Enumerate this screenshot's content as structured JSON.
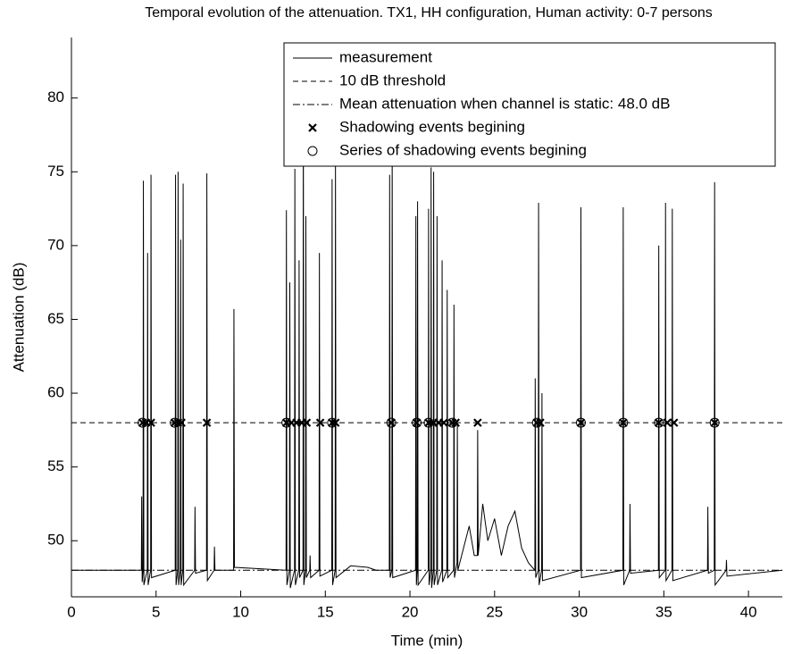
{
  "chart_data": {
    "type": "line",
    "title": "Temporal evolution of the attenuation. TX1, HH configuration, Human activity: 0-7 persons",
    "x_label": "Time (min)",
    "y_label": "Attenuation (dB)",
    "xlim": [
      0,
      42
    ],
    "ylim": [
      46.2,
      84.1
    ],
    "xticks": [
      0,
      5,
      10,
      15,
      20,
      25,
      30,
      35,
      40
    ],
    "yticks": [
      50,
      55,
      60,
      65,
      70,
      75,
      80
    ],
    "legend": "upper right",
    "series": [
      {
        "name": "measurement",
        "color": "#000000",
        "style": "solid",
        "x": [
          0,
          4.13,
          4.15,
          4.18,
          4.23,
          4.25,
          4.28,
          4.48,
          4.5,
          4.53,
          4.68,
          4.7,
          4.73,
          6.13,
          6.15,
          6.18,
          6.28,
          6.3,
          6.33,
          6.43,
          6.45,
          6.48,
          6.58,
          6.6,
          6.63,
          7.28,
          7.3,
          7.33,
          7.98,
          8.0,
          8.03,
          8.43,
          8.45,
          8.48,
          9.58,
          9.6,
          9.63,
          12.68,
          12.7,
          12.73,
          12.88,
          12.9,
          12.93,
          13.18,
          13.2,
          13.23,
          13.43,
          13.45,
          13.48,
          13.68,
          13.7,
          13.73,
          13.83,
          13.85,
          13.88,
          14.08,
          14.1,
          14.13,
          14.63,
          14.65,
          14.68,
          15.38,
          15.4,
          15.43,
          15.58,
          15.6,
          15.63,
          16.5,
          17.5,
          18.0,
          18.78,
          18.8,
          18.83,
          18.93,
          18.95,
          18.98,
          20.33,
          20.35,
          20.38,
          20.43,
          20.45,
          20.48,
          21.08,
          21.1,
          21.13,
          21.23,
          21.25,
          21.28,
          21.38,
          21.4,
          21.43,
          21.58,
          21.6,
          21.63,
          21.88,
          21.9,
          21.93,
          22.18,
          22.2,
          22.23,
          22.58,
          22.6,
          22.63,
          22.78,
          22.8,
          22.83,
          23.5,
          23.8,
          23.98,
          24.0,
          24.03,
          24.3,
          24.6,
          25.0,
          25.4,
          25.8,
          26.2,
          26.6,
          27.0,
          27.38,
          27.4,
          27.43,
          27.58,
          27.6,
          27.63,
          27.78,
          27.8,
          27.83,
          30.08,
          30.1,
          30.13,
          32.58,
          32.6,
          32.63,
          32.98,
          33.0,
          33.03,
          34.68,
          34.7,
          34.73,
          35.08,
          35.1,
          35.13,
          35.48,
          35.5,
          35.53,
          37.58,
          37.6,
          37.63,
          37.98,
          38.0,
          38.03,
          38.68,
          38.7,
          38.73,
          42
        ],
        "values": [
          48,
          48,
          53,
          47.2,
          48,
          74.4,
          47,
          48,
          69.5,
          47,
          48,
          74.8,
          47.5,
          48,
          74.8,
          47,
          48,
          75,
          47,
          48,
          70.4,
          47,
          48,
          74.2,
          47,
          48,
          52.3,
          47.8,
          48,
          74.9,
          47.3,
          48,
          49.6,
          48,
          48,
          65.7,
          48.2,
          48,
          72.4,
          47,
          48,
          67.5,
          46.8,
          48,
          75.2,
          47,
          48,
          69,
          47.5,
          48,
          80.5,
          47,
          48,
          72,
          47.5,
          48,
          49,
          47.5,
          48,
          69.5,
          47.6,
          48,
          74.5,
          47,
          48,
          76,
          47.5,
          48.3,
          48.2,
          48,
          48,
          74.8,
          47.5,
          48,
          77.7,
          47.5,
          48,
          72,
          47,
          48,
          73,
          47,
          48,
          72.5,
          47,
          48,
          75.3,
          46.8,
          48,
          75,
          47,
          48,
          72,
          47,
          48,
          69,
          47.2,
          48,
          67,
          47.5,
          48,
          66,
          47.5,
          48.5,
          58,
          48,
          51,
          49,
          49,
          57.5,
          49,
          52.5,
          50,
          51.5,
          49,
          51,
          52,
          49.5,
          48.5,
          48,
          61,
          47.5,
          48,
          72.9,
          47,
          48,
          60,
          47.3,
          48,
          72.6,
          47.5,
          48,
          72.6,
          47,
          48,
          52.5,
          47.8,
          48,
          70,
          47.5,
          48,
          72.9,
          47.3,
          48,
          72.5,
          47.3,
          48,
          52.3,
          47.8,
          48,
          74.3,
          47,
          48,
          48.7,
          47.6,
          48
        ]
      },
      {
        "name": "10 dB threshold",
        "color": "#000000",
        "style": "dashed",
        "x": [
          0,
          42
        ],
        "values": [
          58,
          58
        ]
      },
      {
        "name": "Mean attenuation when channel is static: 48.0 dB",
        "color": "#000000",
        "style": "dashdot",
        "x": [
          0,
          42
        ],
        "values": [
          48,
          48
        ]
      },
      {
        "name": "Shadowing events begining",
        "color": "#000000",
        "style": "x-marker",
        "x": [
          4.2,
          4.4,
          4.7,
          6.1,
          6.3,
          6.5,
          8.0,
          12.7,
          13.0,
          13.3,
          13.6,
          13.9,
          14.7,
          15.4,
          15.6,
          18.9,
          20.4,
          21.1,
          21.4,
          21.7,
          22.0,
          22.5,
          22.7,
          24.0,
          27.5,
          27.7,
          30.1,
          32.6,
          34.7,
          35.2,
          35.6,
          38.0
        ],
        "values": [
          58,
          58,
          58,
          58,
          58,
          58,
          58,
          58,
          58,
          58,
          58,
          58,
          58,
          58,
          58,
          58,
          58,
          58,
          58,
          58,
          58,
          58,
          58,
          58,
          58,
          58,
          58,
          58,
          58,
          58,
          58,
          58
        ]
      },
      {
        "name": "Series of shadowing events begining",
        "color": "#000000",
        "style": "o-marker",
        "x": [
          4.2,
          6.1,
          12.7,
          15.4,
          18.9,
          20.4,
          21.1,
          22.5,
          27.5,
          30.1,
          32.6,
          34.7,
          38.0
        ],
        "values": [
          58,
          58,
          58,
          58,
          58,
          58,
          58,
          58,
          58,
          58,
          58,
          58,
          58
        ]
      }
    ]
  }
}
